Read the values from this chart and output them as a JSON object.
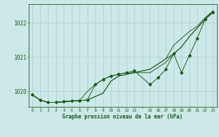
{
  "background_color": "#cce8e8",
  "grid_color": "#aacccc",
  "line_color": "#1a5c1a",
  "title": "Graphe pression niveau de la mer (hPa)",
  "xlim": [
    -0.5,
    23.5
  ],
  "ylim": [
    1019.55,
    1022.55
  ],
  "yticks": [
    1020,
    1021,
    1022
  ],
  "xtick_labels": [
    "0",
    "1",
    "2",
    "3",
    "4",
    "5",
    "6",
    "7",
    "8",
    "9",
    "10",
    "11",
    "12",
    "13",
    "",
    "15",
    "16",
    "17",
    "18",
    "19",
    "20",
    "21",
    "22",
    "23"
  ],
  "series1": [
    [
      0,
      1019.9
    ],
    [
      1,
      1019.75
    ],
    [
      2,
      1019.68
    ],
    [
      3,
      1019.68
    ],
    [
      4,
      1019.7
    ],
    [
      5,
      1019.72
    ],
    [
      6,
      1019.73
    ],
    [
      7,
      1019.75
    ],
    [
      8,
      1019.85
    ],
    [
      9,
      1019.95
    ],
    [
      10,
      1020.3
    ],
    [
      11,
      1020.45
    ],
    [
      12,
      1020.5
    ],
    [
      13,
      1020.55
    ],
    [
      15,
      1020.65
    ],
    [
      16,
      1020.8
    ],
    [
      17,
      1020.95
    ],
    [
      18,
      1021.1
    ],
    [
      19,
      1021.3
    ],
    [
      20,
      1021.6
    ],
    [
      21,
      1021.85
    ],
    [
      22,
      1022.1
    ],
    [
      23,
      1022.35
    ]
  ],
  "series2": [
    [
      0,
      1019.9
    ],
    [
      1,
      1019.75
    ],
    [
      2,
      1019.68
    ],
    [
      3,
      1019.68
    ],
    [
      4,
      1019.7
    ],
    [
      5,
      1019.72
    ],
    [
      6,
      1019.73
    ],
    [
      7,
      1019.75
    ],
    [
      8,
      1019.85
    ],
    [
      9,
      1019.95
    ],
    [
      10,
      1020.3
    ],
    [
      11,
      1020.45
    ],
    [
      12,
      1020.5
    ],
    [
      13,
      1020.55
    ],
    [
      15,
      1020.65
    ],
    [
      16,
      1020.8
    ],
    [
      17,
      1020.95
    ],
    [
      18,
      1021.35
    ],
    [
      19,
      1021.55
    ],
    [
      20,
      1021.75
    ],
    [
      21,
      1021.9
    ],
    [
      22,
      1022.15
    ],
    [
      23,
      1022.35
    ]
  ],
  "series3": [
    [
      0,
      1019.9
    ],
    [
      1,
      1019.75
    ],
    [
      2,
      1019.68
    ],
    [
      3,
      1019.68
    ],
    [
      4,
      1019.7
    ],
    [
      5,
      1019.72
    ],
    [
      6,
      1019.73
    ],
    [
      7,
      1020.0
    ],
    [
      8,
      1020.2
    ],
    [
      9,
      1020.35
    ],
    [
      10,
      1020.45
    ],
    [
      11,
      1020.5
    ],
    [
      12,
      1020.55
    ],
    [
      13,
      1020.55
    ],
    [
      15,
      1020.55
    ],
    [
      16,
      1020.7
    ],
    [
      17,
      1020.85
    ],
    [
      18,
      1021.1
    ],
    [
      19,
      1021.3
    ],
    [
      20,
      1021.6
    ],
    [
      21,
      1021.85
    ],
    [
      22,
      1022.1
    ],
    [
      23,
      1022.35
    ]
  ],
  "series4_markers": [
    [
      0,
      1019.9
    ],
    [
      1,
      1019.75
    ],
    [
      2,
      1019.68
    ],
    [
      3,
      1019.68
    ],
    [
      4,
      1019.7
    ],
    [
      5,
      1019.72
    ],
    [
      6,
      1019.73
    ],
    [
      7,
      1019.75
    ],
    [
      8,
      1020.2
    ],
    [
      9,
      1020.35
    ],
    [
      10,
      1020.45
    ],
    [
      11,
      1020.5
    ],
    [
      12,
      1020.55
    ],
    [
      13,
      1020.6
    ],
    [
      15,
      1020.2
    ],
    [
      16,
      1020.4
    ],
    [
      17,
      1020.65
    ],
    [
      18,
      1021.1
    ],
    [
      19,
      1020.55
    ],
    [
      20,
      1021.05
    ],
    [
      21,
      1021.55
    ],
    [
      22,
      1022.1
    ],
    [
      23,
      1022.3
    ]
  ]
}
